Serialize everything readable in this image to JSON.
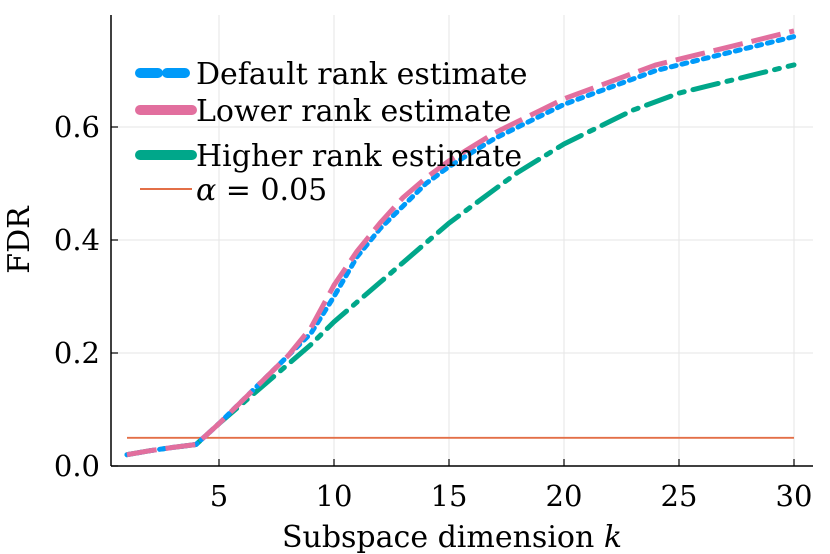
{
  "chart_data": {
    "type": "line",
    "title": "",
    "xlabel": "Subspace dimension k",
    "xlabel_text": "Subspace dimension ",
    "xlabel_var": "k",
    "ylabel": "FDR",
    "xlim": [
      1,
      30
    ],
    "ylim": [
      0,
      0.76
    ],
    "xticks": [
      5,
      10,
      15,
      20,
      25,
      30
    ],
    "xtick_labels": [
      "5",
      "10",
      "15",
      "20",
      "25",
      "30"
    ],
    "yticks": [
      0.0,
      0.2,
      0.4,
      0.6
    ],
    "ytick_labels": [
      "0.0",
      "0.2",
      "0.4",
      "0.6"
    ],
    "grid": true,
    "legend_position": "top-left",
    "x": [
      1,
      2,
      3,
      4,
      5,
      6,
      7,
      8,
      9,
      10,
      11,
      12,
      13,
      14,
      15,
      16,
      17,
      18,
      19,
      20,
      21,
      22,
      23,
      24,
      25,
      26,
      27,
      28,
      29,
      30
    ],
    "series": [
      {
        "name": "Default rank estimate",
        "color": "#009AF9",
        "style": "dotted",
        "values": [
          0.02,
          0.027,
          0.033,
          0.038,
          0.075,
          0.115,
          0.155,
          0.195,
          0.235,
          0.3,
          0.37,
          0.42,
          0.46,
          0.5,
          0.53,
          0.555,
          0.58,
          0.6,
          0.62,
          0.64,
          0.655,
          0.67,
          0.685,
          0.7,
          0.71,
          0.72,
          0.73,
          0.74,
          0.75,
          0.76
        ]
      },
      {
        "name": "Lower rank estimate",
        "color": "#E26F9E",
        "style": "dashed",
        "values": [
          0.02,
          0.027,
          0.033,
          0.038,
          0.075,
          0.115,
          0.155,
          0.195,
          0.245,
          0.32,
          0.38,
          0.43,
          0.475,
          0.51,
          0.54,
          0.565,
          0.59,
          0.61,
          0.63,
          0.65,
          0.665,
          0.68,
          0.695,
          0.71,
          0.72,
          0.73,
          0.74,
          0.75,
          0.76,
          0.77
        ]
      },
      {
        "name": "Higher rank estimate",
        "color": "#00A78A",
        "style": "dashdot",
        "values": [
          0.02,
          0.027,
          0.033,
          0.038,
          0.075,
          0.11,
          0.145,
          0.18,
          0.215,
          0.255,
          0.29,
          0.325,
          0.36,
          0.395,
          0.43,
          0.46,
          0.49,
          0.52,
          0.545,
          0.57,
          0.59,
          0.61,
          0.63,
          0.645,
          0.66,
          0.67,
          0.68,
          0.69,
          0.7,
          0.71
        ]
      },
      {
        "name": "α = 0.05",
        "color": "#E36F47",
        "style": "solid",
        "values": [
          0.05,
          0.05,
          0.05,
          0.05,
          0.05,
          0.05,
          0.05,
          0.05,
          0.05,
          0.05,
          0.05,
          0.05,
          0.05,
          0.05,
          0.05,
          0.05,
          0.05,
          0.05,
          0.05,
          0.05,
          0.05,
          0.05,
          0.05,
          0.05,
          0.05,
          0.05,
          0.05,
          0.05,
          0.05,
          0.05
        ]
      }
    ],
    "legend": {
      "entries": [
        {
          "label": "Default rank estimate",
          "color": "#009AF9",
          "style": "dotted"
        },
        {
          "label": "Lower rank estimate",
          "color": "#E26F9E",
          "style": "dashed"
        },
        {
          "label": "Higher rank estimate",
          "color": "#00A78A",
          "style": "dashdot"
        },
        {
          "label_var": "α",
          "label_rest": " = 0.05",
          "color": "#E36F47",
          "style": "solid"
        }
      ]
    }
  }
}
